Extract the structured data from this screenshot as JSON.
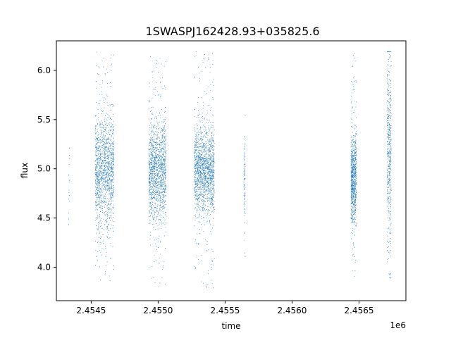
{
  "chart_data": {
    "type": "scatter",
    "title": "1SWASPJ162428.93+035825.6",
    "xlabel": "time",
    "ylabel": "flux",
    "x_offset_label": "1e6",
    "x_scale": 1000000,
    "xlim": [
      2.45424,
      2.45685
    ],
    "ylim": [
      3.66,
      6.3
    ],
    "x_ticks": [
      {
        "value": 2.4545,
        "label": "2.4545"
      },
      {
        "value": 2.455,
        "label": "2.4550"
      },
      {
        "value": 2.4555,
        "label": "2.4555"
      },
      {
        "value": 2.456,
        "label": "2.4560"
      },
      {
        "value": 2.4565,
        "label": "2.4565"
      }
    ],
    "y_ticks": [
      {
        "value": 4.0,
        "label": "4.0"
      },
      {
        "value": 4.5,
        "label": "4.5"
      },
      {
        "value": 5.0,
        "label": "5.0"
      },
      {
        "value": 5.5,
        "label": "5.5"
      },
      {
        "value": 6.0,
        "label": "6.0"
      }
    ],
    "grid": false,
    "series_color": "#1f77b4",
    "clusters": [
      {
        "x_min": 2.45433,
        "x_max": 2.45434,
        "y_min": 4.1,
        "y_max": 5.21,
        "center": 4.85,
        "spread": 0.3,
        "points": 20
      },
      {
        "x_min": 2.45453,
        "x_max": 2.45467,
        "y_min": 3.82,
        "y_max": 6.19,
        "center": 4.98,
        "spread": 0.28,
        "points": 1500
      },
      {
        "x_min": 2.45493,
        "x_max": 2.45506,
        "y_min": 3.77,
        "y_max": 6.14,
        "center": 4.98,
        "spread": 0.25,
        "points": 1500
      },
      {
        "x_min": 2.45527,
        "x_max": 2.45542,
        "y_min": 3.78,
        "y_max": 6.19,
        "center": 4.98,
        "spread": 0.22,
        "points": 1700
      },
      {
        "x_min": 2.45564,
        "x_max": 2.45565,
        "y_min": 4.07,
        "y_max": 5.57,
        "center": 4.88,
        "spread": 0.2,
        "points": 90
      },
      {
        "x_min": 2.45644,
        "x_max": 2.45648,
        "y_min": 3.84,
        "y_max": 6.19,
        "center": 4.9,
        "spread": 0.22,
        "points": 900
      },
      {
        "x_min": 2.45671,
        "x_max": 2.45674,
        "y_min": 3.88,
        "y_max": 6.19,
        "center": 5.2,
        "spread": 0.45,
        "points": 500
      }
    ]
  }
}
